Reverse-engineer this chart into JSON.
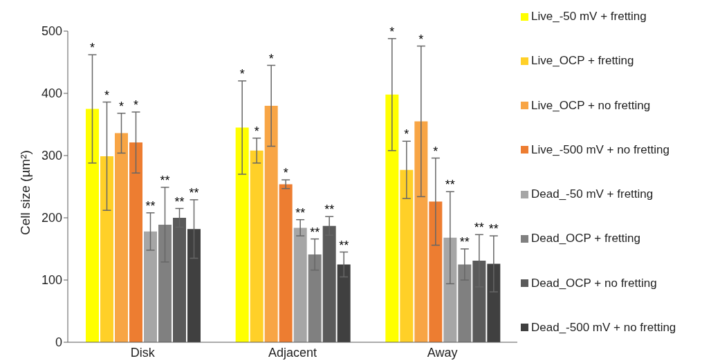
{
  "chart_data": {
    "type": "bar",
    "ylabel": "Cell size (µm²)",
    "categories": [
      "Disk",
      "Adjacent",
      "Away"
    ],
    "series": [
      {
        "name": "Live_-50 mV + fretting",
        "color": "#ffff00",
        "values": [
          375,
          345,
          398
        ],
        "errors": [
          87,
          75,
          90
        ]
      },
      {
        "name": "Live_OCP + fretting",
        "color": "#ffd028",
        "values": [
          299,
          308,
          277
        ],
        "errors": [
          87,
          20,
          46
        ]
      },
      {
        "name": "Live_OCP + no fretting",
        "color": "#f8a545",
        "values": [
          336,
          380,
          355
        ],
        "errors": [
          32,
          65,
          121
        ]
      },
      {
        "name": "Live_-500 mV + no fretting",
        "color": "#ed7d31",
        "values": [
          321,
          254,
          226
        ],
        "errors": [
          49,
          7,
          70
        ]
      },
      {
        "name": "Dead_-50 mV + fretting",
        "color": "#a6a6a6",
        "values": [
          178,
          184,
          168
        ],
        "errors": [
          30,
          13,
          74
        ]
      },
      {
        "name": "Dead_OCP + fretting",
        "color": "#808080",
        "values": [
          189,
          141,
          125
        ],
        "errors": [
          60,
          25,
          25
        ]
      },
      {
        "name": "Dead_OCP + no fretting",
        "color": "#5a5a5a",
        "values": [
          200,
          187,
          131
        ],
        "errors": [
          15,
          15,
          42
        ]
      },
      {
        "name": "Dead_-500 mV + no fretting",
        "color": "#404040",
        "values": [
          182,
          125,
          126
        ],
        "errors": [
          47,
          20,
          45
        ]
      }
    ],
    "annotations": [
      "*",
      "*",
      "*",
      "*",
      "**",
      "**",
      "**",
      "**",
      "*",
      "*",
      "*",
      "*",
      "**",
      "**",
      "**",
      "**",
      "*",
      "*",
      "*",
      "*",
      "**",
      "**",
      "**",
      "**"
    ],
    "ylim": [
      0,
      500
    ],
    "yticks": [
      0,
      100,
      200,
      300,
      400,
      500
    ],
    "grid": false,
    "legend": "right"
  }
}
